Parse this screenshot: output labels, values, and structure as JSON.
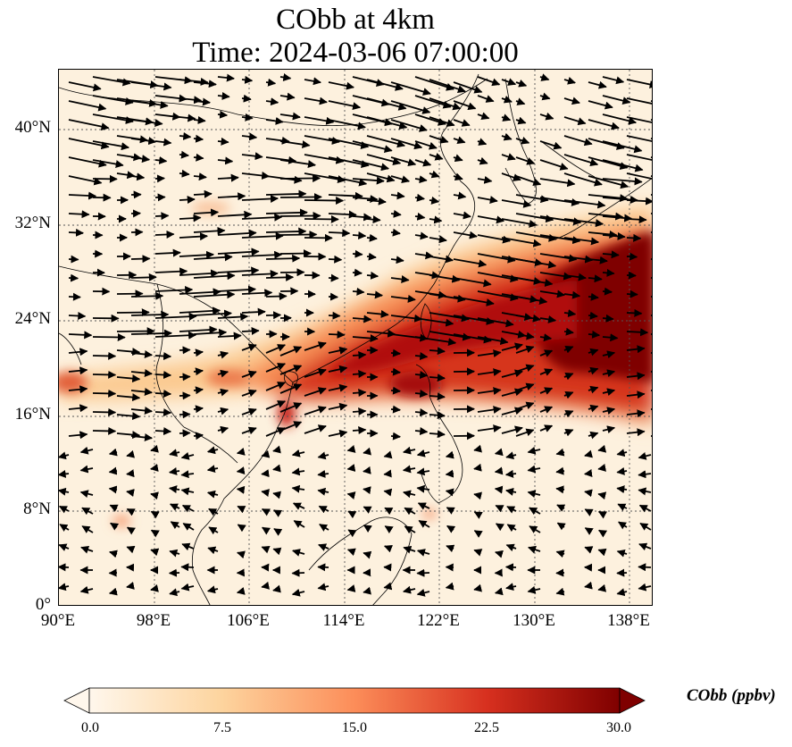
{
  "figure": {
    "title_line1": "CObb at 4km",
    "title_line2": "Time: 2024-03-06 07:00:00"
  },
  "map": {
    "lon_range": [
      90,
      140
    ],
    "lat_range": [
      0,
      45
    ],
    "grid": true,
    "lat_ticks": [
      "40°N",
      "32°N",
      "24°N",
      "16°N",
      "8°N",
      "0°"
    ],
    "lon_ticks": [
      "90°E",
      "98°E",
      "106°E",
      "114°E",
      "122°E",
      "130°E",
      "138°E"
    ],
    "field_name": "CObb",
    "vector_field": "wind vectors at 4km"
  },
  "colorbar": {
    "label": "CObb (ppbv)",
    "ticks": [
      "0.0",
      "7.5",
      "15.0",
      "22.5",
      "30.0"
    ],
    "range": [
      0,
      30
    ],
    "extend": "both",
    "colormap": "OrRd",
    "colors": [
      "#fff7ec",
      "#fdd49e",
      "#fc8d59",
      "#d7301f",
      "#7f0000"
    ]
  }
}
